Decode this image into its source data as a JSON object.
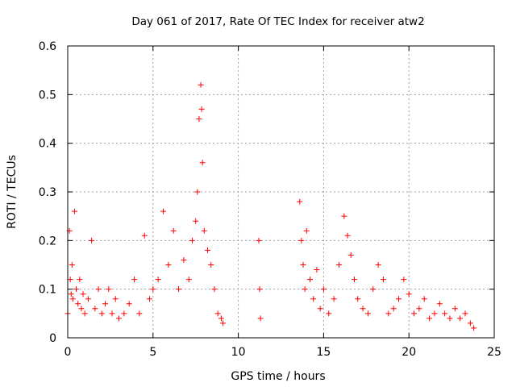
{
  "chart_data": {
    "type": "scatter",
    "title": "Day 061 of 2017, Rate Of TEC Index for receiver atw2",
    "xlabel": "GPS time / hours",
    "ylabel": "ROTI / TECUs",
    "xlim": [
      0,
      25
    ],
    "ylim": [
      0,
      0.6
    ],
    "x_ticks": [
      "0",
      "5",
      "10",
      "15",
      "20",
      "25"
    ],
    "y_ticks": [
      "0",
      "0.1",
      "0.2",
      "0.3",
      "0.4",
      "0.5",
      "0.6"
    ],
    "grid": true,
    "legend": "none",
    "marker": "plus",
    "series": [
      {
        "color": "#ff0000",
        "x": [
          0.0,
          0.1,
          0.15,
          0.2,
          0.25,
          0.3,
          0.4,
          0.5,
          0.6,
          0.7,
          0.8,
          0.9,
          1.0,
          1.2,
          1.4,
          1.6,
          1.8,
          2.0,
          2.2,
          2.4,
          2.6,
          2.8,
          3.0,
          3.3,
          3.6,
          3.9,
          4.2,
          4.5,
          4.8,
          5.0,
          5.3,
          5.6,
          5.9,
          6.2,
          6.5,
          6.8,
          7.1,
          7.3,
          7.5,
          7.6,
          7.7,
          7.8,
          7.85,
          7.9,
          8.0,
          8.2,
          8.4,
          8.6,
          8.8,
          9.0,
          9.1,
          11.2,
          11.25,
          11.3,
          13.6,
          13.7,
          13.8,
          13.9,
          14.0,
          14.2,
          14.4,
          14.6,
          14.8,
          15.0,
          15.3,
          15.6,
          15.9,
          16.2,
          16.4,
          16.6,
          16.8,
          17.0,
          17.3,
          17.6,
          17.9,
          18.2,
          18.5,
          18.8,
          19.1,
          19.4,
          19.7,
          20.0,
          20.3,
          20.6,
          20.9,
          21.2,
          21.5,
          21.8,
          22.1,
          22.4,
          22.7,
          23.0,
          23.3,
          23.6,
          23.8
        ],
        "y": [
          0.05,
          0.22,
          0.12,
          0.09,
          0.15,
          0.08,
          0.26,
          0.1,
          0.07,
          0.12,
          0.06,
          0.09,
          0.05,
          0.08,
          0.2,
          0.06,
          0.1,
          0.05,
          0.07,
          0.1,
          0.05,
          0.08,
          0.04,
          0.05,
          0.07,
          0.12,
          0.05,
          0.21,
          0.08,
          0.1,
          0.12,
          0.26,
          0.15,
          0.22,
          0.1,
          0.16,
          0.12,
          0.2,
          0.24,
          0.3,
          0.45,
          0.52,
          0.47,
          0.36,
          0.22,
          0.18,
          0.15,
          0.1,
          0.05,
          0.04,
          0.03,
          0.2,
          0.1,
          0.04,
          0.28,
          0.2,
          0.15,
          0.1,
          0.22,
          0.12,
          0.08,
          0.14,
          0.06,
          0.1,
          0.05,
          0.08,
          0.15,
          0.25,
          0.21,
          0.17,
          0.12,
          0.08,
          0.06,
          0.05,
          0.1,
          0.15,
          0.12,
          0.05,
          0.06,
          0.08,
          0.12,
          0.09,
          0.05,
          0.06,
          0.08,
          0.04,
          0.05,
          0.07,
          0.05,
          0.04,
          0.06,
          0.04,
          0.05,
          0.03,
          0.02
        ]
      }
    ]
  }
}
